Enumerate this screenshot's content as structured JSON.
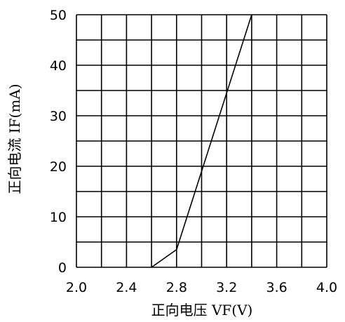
{
  "chart_data": {
    "type": "line",
    "title": "",
    "xlabel": "正向电压 VF(V)",
    "ylabel": "正向电流 IF(mA)",
    "xlim": [
      2.0,
      4.0
    ],
    "ylim": [
      0,
      50
    ],
    "x_ticks": [
      2.0,
      2.2,
      2.4,
      2.6,
      2.8,
      3.0,
      3.2,
      3.4,
      3.6,
      3.8,
      4.0
    ],
    "x_tick_labels": [
      "2.0",
      "2.4",
      "2.8",
      "3.2",
      "3.6",
      "4.0"
    ],
    "x_tick_label_values": [
      2.0,
      2.4,
      2.8,
      3.2,
      3.6,
      4.0
    ],
    "y_ticks": [
      0,
      5,
      10,
      15,
      20,
      25,
      30,
      35,
      40,
      45,
      50
    ],
    "y_tick_labels": [
      "0",
      "10",
      "20",
      "30",
      "40",
      "50"
    ],
    "y_tick_label_values": [
      0,
      10,
      20,
      30,
      40,
      50
    ],
    "grid": true,
    "legend": "none",
    "series": [
      {
        "x": [
          2.6,
          2.8,
          3.4
        ],
        "y": [
          0,
          3.5,
          50
        ]
      }
    ],
    "colors": {
      "line": "#000000",
      "grid": "#000000",
      "background": "#ffffff"
    }
  }
}
